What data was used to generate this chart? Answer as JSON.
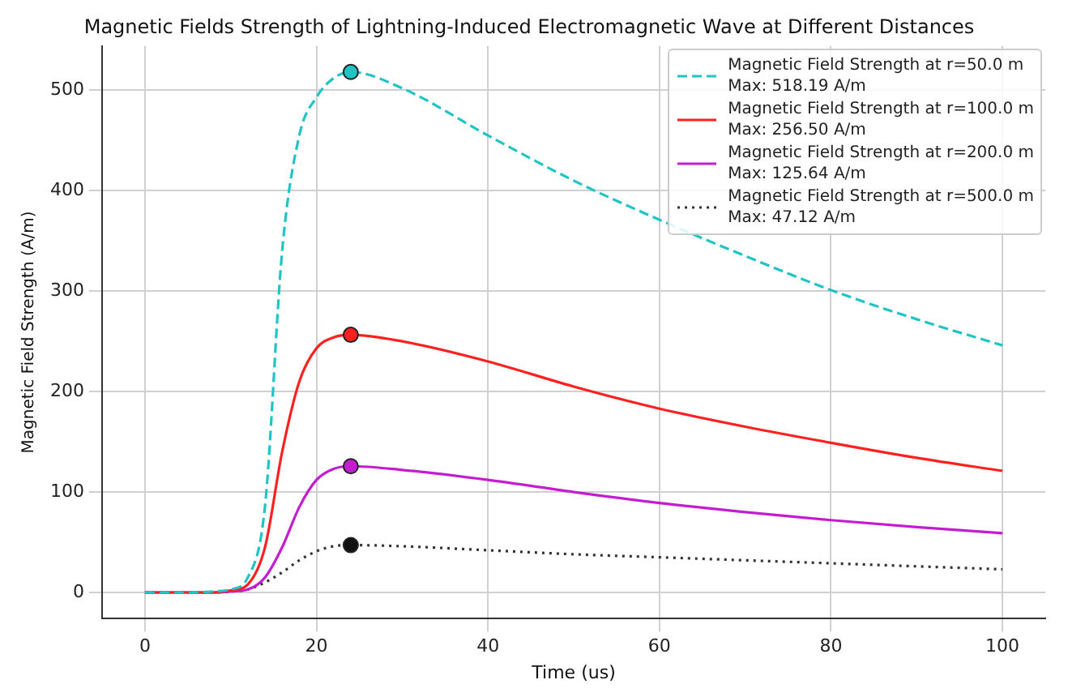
{
  "chart_data": {
    "type": "line",
    "title": "Magnetic Fields Strength of Lightning-Induced Electromagnetic Wave at Different Distances",
    "xlabel": "Time (us)",
    "ylabel": "Magnetic Field Strength (A/m)",
    "xlim": [
      -5,
      105
    ],
    "ylim": [
      -26,
      544
    ],
    "xticks": [
      0,
      20,
      40,
      60,
      80,
      100
    ],
    "yticks": [
      0,
      100,
      200,
      300,
      400,
      500
    ],
    "grid": true,
    "legend": "top right",
    "series": [
      {
        "name": "Magnetic Field Strength at r=50.0 m\nMax:  518.19 A/m",
        "color": "#20c4c4",
        "line_style": "dashed",
        "marker": "none",
        "x": [
          0,
          5,
          8,
          10,
          12,
          14,
          16,
          18,
          20,
          22,
          24,
          30,
          40,
          50,
          60,
          70,
          80,
          90,
          100
        ],
        "values": [
          0,
          0,
          1,
          3,
          15,
          86,
          340,
          455,
          493,
          512,
          518.19,
          502,
          455,
          410,
          371,
          335,
          301,
          272,
          246
        ]
      },
      {
        "name": "Magnetic Field Strength at r=100.0 m\nMax:  256.50 A/m",
        "color": "#ff2020",
        "line_style": "solid",
        "marker": "none",
        "x": [
          0,
          5,
          8,
          10,
          12,
          14,
          16,
          18,
          20,
          22,
          24,
          30,
          40,
          50,
          60,
          70,
          80,
          90,
          100
        ],
        "values": [
          0,
          0,
          0,
          2,
          8,
          45,
          140,
          210,
          243,
          254,
          256.5,
          250,
          230,
          205,
          183,
          165,
          149,
          134,
          121
        ]
      },
      {
        "name": "Magnetic Field Strength at r=200.0 m\nMax:  125.64 A/m",
        "color": "#c41cd0",
        "line_style": "solid",
        "marker": "none",
        "x": [
          0,
          5,
          8,
          10,
          12,
          14,
          16,
          18,
          20,
          22,
          24,
          30,
          40,
          50,
          60,
          70,
          80,
          90,
          100
        ],
        "values": [
          0,
          0,
          0,
          1,
          3,
          15,
          45,
          85,
          112,
          123,
          125.64,
          122,
          112,
          100,
          89,
          80,
          72,
          65,
          59
        ]
      },
      {
        "name": "Magnetic Field Strength at r=500.0 m\nMax:  47.12 A/m",
        "color": "#333333",
        "line_style": "dotted",
        "marker": "none",
        "x": [
          0,
          5,
          8,
          10,
          12,
          14,
          16,
          18,
          20,
          22,
          24,
          30,
          40,
          50,
          60,
          70,
          80,
          90,
          100
        ],
        "values": [
          0,
          0,
          0,
          1,
          3,
          10,
          20,
          32,
          41,
          46,
          47.12,
          46,
          42,
          38,
          35,
          32,
          29,
          26,
          23
        ]
      },
      {
        "type": "scatter",
        "marker": "circle",
        "x": [
          24,
          24,
          24,
          24
        ],
        "values": [
          518.19,
          256.5,
          125.64,
          47.12
        ],
        "colors": [
          "#20c4c4",
          "#ff2020",
          "#c41cd0",
          "#111111"
        ]
      }
    ]
  }
}
